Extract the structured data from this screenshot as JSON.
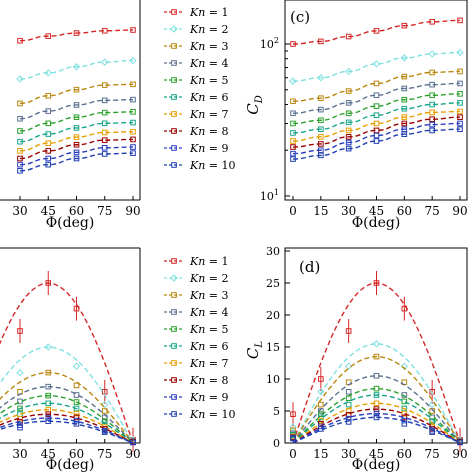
{
  "colors": [
    "#d62728",
    "#7fe0e0",
    "#b8860b",
    "#5a6f8f",
    "#2ca02c",
    "#17a589",
    "#e69f00",
    "#9b0000",
    "#2a3fbf",
    "#1f3faf"
  ],
  "legend_entries": [
    "Kn = 1",
    "Kn = 2",
    "Kn = 3",
    "Kn = 4",
    "Kn = 5",
    "Kn = 6",
    "Kn = 7",
    "Kn = 8",
    "Kn = 9",
    "Kn = 10"
  ],
  "chart_data": [
    {
      "panel": "partial-top-left",
      "type": "line",
      "x": [
        30,
        45,
        60,
        75,
        90
      ],
      "xlabel": "Φ(deg)",
      "xticks": [
        30,
        45,
        60,
        75,
        90
      ],
      "series": [
        {
          "name": "Kn = 1",
          "values": [
            0.93,
            0.96,
            0.98,
            0.995,
            1.0
          ]
        },
        {
          "name": "Kn = 2",
          "values": [
            0.68,
            0.72,
            0.76,
            0.79,
            0.8
          ]
        },
        {
          "name": "Kn = 3",
          "values": [
            0.52,
            0.57,
            0.61,
            0.64,
            0.645
          ]
        },
        {
          "name": "Kn = 4",
          "values": [
            0.42,
            0.47,
            0.51,
            0.54,
            0.545
          ]
        },
        {
          "name": "Kn = 5",
          "values": [
            0.34,
            0.39,
            0.43,
            0.46,
            0.465
          ]
        },
        {
          "name": "Kn = 6",
          "values": [
            0.27,
            0.32,
            0.36,
            0.39,
            0.395
          ]
        },
        {
          "name": "Kn = 7",
          "values": [
            0.21,
            0.26,
            0.3,
            0.33,
            0.335
          ]
        },
        {
          "name": "Kn = 8",
          "values": [
            0.16,
            0.21,
            0.25,
            0.28,
            0.285
          ]
        },
        {
          "name": "Kn = 9",
          "values": [
            0.12,
            0.16,
            0.2,
            0.23,
            0.235
          ]
        },
        {
          "name": "Kn = 10",
          "values": [
            0.08,
            0.12,
            0.16,
            0.19,
            0.195
          ]
        }
      ]
    },
    {
      "panel": "c",
      "type": "line",
      "label": "(c)",
      "x": [
        0,
        15,
        30,
        45,
        60,
        75,
        90
      ],
      "xlabel": "Φ(deg)",
      "ylabel": "C_D",
      "yscale": "log",
      "ylim": [
        10,
        200
      ],
      "xticks": [
        0,
        15,
        30,
        45,
        60,
        75,
        90
      ],
      "yticks": [
        "10^1",
        "10^2"
      ],
      "series": [
        {
          "name": "Kn = 1",
          "values": [
            100,
            104,
            112,
            122,
            132,
            140,
            143
          ]
        },
        {
          "name": "Kn = 2",
          "values": [
            57,
            60,
            66,
            74,
            81,
            86,
            88
          ]
        },
        {
          "name": "Kn = 3",
          "values": [
            42,
            44,
            49,
            55,
            61,
            65,
            66
          ]
        },
        {
          "name": "Kn = 4",
          "values": [
            35,
            37,
            41,
            46,
            51,
            54,
            55
          ]
        },
        {
          "name": "Kn = 5",
          "values": [
            30,
            31.5,
            35,
            39,
            43,
            46,
            47
          ]
        },
        {
          "name": "Kn = 6",
          "values": [
            26,
            27.5,
            30.5,
            34,
            37.5,
            40,
            41
          ]
        },
        {
          "name": "Kn = 7",
          "values": [
            23,
            24.5,
            27,
            30,
            33,
            35.5,
            36
          ]
        },
        {
          "name": "Kn = 8",
          "values": [
            21,
            22,
            24.5,
            27,
            30,
            32,
            33
          ]
        },
        {
          "name": "Kn = 9",
          "values": [
            19,
            20,
            22.5,
            25,
            27.5,
            29.5,
            30
          ]
        },
        {
          "name": "Kn = 10",
          "values": [
            17.5,
            18.5,
            20.5,
            23,
            25.5,
            27,
            27.5
          ]
        }
      ]
    },
    {
      "panel": "partial-bottom-left",
      "type": "line",
      "x": [
        30,
        45,
        60,
        75,
        90
      ],
      "xlabel": "Φ(deg)",
      "xticks": [
        30,
        45,
        60,
        75,
        90
      ],
      "series": [
        {
          "name": "Kn = 1",
          "values": [
            17.5,
            25,
            21,
            8,
            0.5
          ]
        },
        {
          "name": "Kn = 2",
          "values": [
            11,
            15,
            12,
            6,
            0.5
          ]
        },
        {
          "name": "Kn = 3",
          "values": [
            8,
            11,
            9,
            5,
            0.3
          ]
        },
        {
          "name": "Kn = 4",
          "values": [
            6.5,
            8.8,
            7.5,
            4,
            0.3
          ]
        },
        {
          "name": "Kn = 5",
          "values": [
            5.4,
            7.4,
            6.4,
            3.4,
            0.2
          ]
        },
        {
          "name": "Kn = 6",
          "values": [
            4.5,
            6.2,
            5.4,
            2.9,
            0.2
          ]
        },
        {
          "name": "Kn = 7",
          "values": [
            3.8,
            5.2,
            4.6,
            2.5,
            0.2
          ]
        },
        {
          "name": "Kn = 8",
          "values": [
            3.3,
            4.5,
            4.0,
            2.2,
            0.2
          ]
        },
        {
          "name": "Kn = 9",
          "values": [
            2.8,
            3.9,
            3.5,
            1.9,
            0.1
          ]
        },
        {
          "name": "Kn = 10",
          "values": [
            2.4,
            3.4,
            3.0,
            1.7,
            0.1
          ]
        }
      ]
    },
    {
      "panel": "d",
      "type": "line",
      "label": "(d)",
      "x": [
        0,
        15,
        30,
        45,
        60,
        75,
        90
      ],
      "xlabel": "Φ(deg)",
      "ylabel": "C_L",
      "ylim": [
        0,
        30
      ],
      "xticks": [
        0,
        15,
        30,
        45,
        60,
        75,
        90
      ],
      "yticks": [
        0,
        5,
        10,
        15,
        20,
        25,
        30
      ],
      "series": [
        {
          "name": "Kn = 1",
          "values": [
            4.5,
            10,
            17.5,
            25,
            21,
            8,
            0.5
          ]
        },
        {
          "name": "Kn = 2",
          "values": [
            2.5,
            8,
            12,
            15.5,
            12,
            6,
            0.5
          ]
        },
        {
          "name": "Kn = 3",
          "values": [
            2,
            6,
            9.5,
            13.5,
            9.5,
            5,
            0.3
          ]
        },
        {
          "name": "Kn = 4",
          "values": [
            1.5,
            5,
            8,
            10.5,
            7.5,
            4,
            0.3
          ]
        },
        {
          "name": "Kn = 5",
          "values": [
            1.3,
            4.5,
            7,
            8.5,
            6.5,
            3.4,
            0.2
          ]
        },
        {
          "name": "Kn = 6",
          "values": [
            1.2,
            4,
            6,
            7.5,
            5.4,
            2.9,
            0.2
          ]
        },
        {
          "name": "Kn = 7",
          "values": [
            1,
            3.5,
            5,
            6.2,
            4.6,
            2.5,
            0.2
          ]
        },
        {
          "name": "Kn = 8",
          "values": [
            0.9,
            3,
            4.4,
            5.3,
            4,
            2.2,
            0.2
          ]
        },
        {
          "name": "Kn = 9",
          "values": [
            0.8,
            2.6,
            3.8,
            4.6,
            3.5,
            1.9,
            0.1
          ]
        },
        {
          "name": "Kn = 10",
          "values": [
            0.7,
            2.2,
            3.3,
            4,
            3,
            1.7,
            0.1
          ]
        }
      ]
    }
  ]
}
